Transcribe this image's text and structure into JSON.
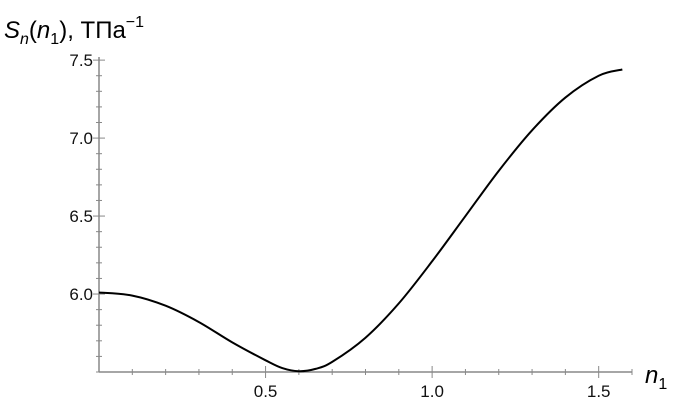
{
  "chart_data": {
    "type": "line",
    "title": "",
    "ylabel": "S_n(n_1), ТПа^-1",
    "ylabel_parts": {
      "symbol": "S",
      "symbol_sub": "n",
      "arg_open": "(",
      "arg": "n",
      "arg_sub": "1",
      "arg_close": ")",
      "unit_sep": ", ",
      "unit": "ТПа",
      "unit_exp": "−1"
    },
    "xlabel": "n_1",
    "xlabel_parts": {
      "symbol": "n",
      "sub": "1"
    },
    "xlim": [
      0,
      1.6
    ],
    "ylim": [
      5.5,
      7.52
    ],
    "x_major_ticks": [
      0.5,
      1.0,
      1.5
    ],
    "x_tick_labels": [
      "0.5",
      "1.0",
      "1.5"
    ],
    "y_major_ticks": [
      6.0,
      6.5,
      7.0,
      7.5
    ],
    "y_tick_labels": [
      "6.0",
      "6.5",
      "7.0",
      "7.5"
    ],
    "x_minor_step": 0.1,
    "y_minor_step": 0.1,
    "grid": false,
    "line_color": "#000000",
    "series": [
      {
        "x": [
          0,
          0.1,
          0.2,
          0.3,
          0.4,
          0.5,
          0.55,
          0.6,
          0.65,
          0.7,
          0.8,
          0.9,
          1.0,
          1.1,
          1.2,
          1.3,
          1.4,
          1.5,
          1.571
        ],
        "values": [
          6.01,
          5.99,
          5.925,
          5.82,
          5.69,
          5.575,
          5.525,
          5.505,
          5.52,
          5.565,
          5.72,
          5.94,
          6.21,
          6.5,
          6.79,
          7.05,
          7.26,
          7.4,
          7.44
        ]
      }
    ]
  }
}
